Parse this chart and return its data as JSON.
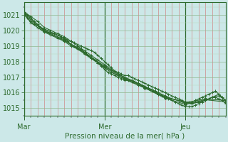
{
  "xlabel": "Pression niveau de la mer( hPa )",
  "bg_color": "#cce8e8",
  "plot_bg_color": "#cce8e8",
  "line_color": "#2d6a2d",
  "ylim": [
    1014.5,
    1021.8
  ],
  "day_labels": [
    "Mar",
    "Mer",
    "Jeu"
  ],
  "day_positions": [
    0,
    48,
    96
  ],
  "total_points": 120,
  "s1_x": [
    0,
    2,
    4,
    6,
    8,
    10,
    12,
    14,
    16,
    18,
    20,
    22,
    24,
    26,
    28,
    30,
    32,
    34,
    36,
    38,
    40,
    42,
    44,
    46,
    48,
    50,
    52,
    54,
    56,
    58,
    60,
    62,
    64,
    66,
    68,
    70,
    72,
    74,
    76,
    78,
    80,
    82,
    84,
    86,
    88,
    90,
    92,
    94,
    96,
    98,
    100,
    102,
    104,
    106,
    108,
    110,
    112,
    114,
    116,
    118,
    120
  ],
  "s1_y": [
    1021.2,
    1021.0,
    1020.8,
    1020.6,
    1020.4,
    1020.2,
    1020.0,
    1019.9,
    1019.8,
    1019.8,
    1019.7,
    1019.6,
    1019.5,
    1019.4,
    1019.3,
    1019.2,
    1019.1,
    1019.0,
    1018.9,
    1018.8,
    1018.7,
    1018.6,
    1018.4,
    1018.2,
    1018.0,
    1017.8,
    1017.6,
    1017.4,
    1017.3,
    1017.2,
    1017.1,
    1017.1,
    1017.0,
    1016.9,
    1016.8,
    1016.7,
    1016.6,
    1016.5,
    1016.4,
    1016.3,
    1016.2,
    1016.1,
    1016.0,
    1015.9,
    1015.8,
    1015.7,
    1015.6,
    1015.5,
    1015.4,
    1015.4,
    1015.4,
    1015.5,
    1015.6,
    1015.7,
    1015.8,
    1015.9,
    1016.0,
    1016.1,
    1015.9,
    1015.7,
    1015.5
  ],
  "s2_x": [
    0,
    2,
    4,
    6,
    8,
    10,
    12,
    14,
    16,
    18,
    20,
    22,
    24,
    26,
    28,
    30,
    32,
    34,
    36,
    38,
    40,
    42,
    44,
    46,
    48,
    50,
    52,
    54,
    56,
    58,
    60,
    62,
    64,
    66,
    68,
    70,
    72,
    74,
    76,
    78,
    80,
    82,
    84,
    86,
    88,
    90,
    92,
    94,
    96,
    98,
    100,
    102,
    104,
    106,
    108,
    110,
    112,
    114,
    116,
    118,
    120
  ],
  "s2_y": [
    1021.0,
    1020.8,
    1020.6,
    1020.4,
    1020.3,
    1020.2,
    1020.1,
    1020.0,
    1019.9,
    1019.8,
    1019.7,
    1019.6,
    1019.5,
    1019.3,
    1019.1,
    1019.0,
    1018.9,
    1018.8,
    1018.6,
    1018.4,
    1018.2,
    1018.1,
    1017.9,
    1017.7,
    1017.5,
    1017.3,
    1017.2,
    1017.1,
    1017.0,
    1016.9,
    1016.8,
    1016.8,
    1016.8,
    1016.7,
    1016.6,
    1016.5,
    1016.4,
    1016.3,
    1016.2,
    1016.1,
    1015.9,
    1015.8,
    1015.7,
    1015.6,
    1015.5,
    1015.4,
    1015.3,
    1015.2,
    1015.1,
    1015.1,
    1015.1,
    1015.2,
    1015.3,
    1015.4,
    1015.5,
    1015.6,
    1015.7,
    1015.7,
    1015.6,
    1015.5,
    1015.3
  ],
  "s3_x": [
    0,
    4,
    8,
    12,
    16,
    20,
    24,
    28,
    32,
    36,
    40,
    44,
    48,
    52,
    56,
    60,
    64,
    68,
    72,
    76,
    80,
    84,
    88,
    92,
    96,
    100,
    104,
    108,
    112,
    116,
    120
  ],
  "s3_y": [
    1021.1,
    1020.5,
    1020.2,
    1019.9,
    1019.7,
    1019.5,
    1019.3,
    1019.0,
    1018.8,
    1018.5,
    1018.2,
    1017.9,
    1017.6,
    1017.3,
    1017.1,
    1016.9,
    1016.7,
    1016.5,
    1016.3,
    1016.1,
    1015.9,
    1015.7,
    1015.6,
    1015.5,
    1015.3,
    1015.3,
    1015.4,
    1015.5,
    1015.7,
    1015.8,
    1015.5
  ],
  "s4_x": [
    0,
    4,
    8,
    12,
    16,
    20,
    24,
    28,
    32,
    36,
    40,
    44,
    48,
    52,
    56,
    60,
    64,
    68,
    72,
    76,
    80,
    84,
    88,
    92,
    96,
    100,
    104,
    108,
    112,
    116,
    120
  ],
  "s4_y": [
    1021.2,
    1020.9,
    1020.6,
    1020.2,
    1020.0,
    1019.8,
    1019.6,
    1019.3,
    1019.0,
    1018.7,
    1018.4,
    1018.1,
    1017.8,
    1017.5,
    1017.2,
    1017.0,
    1016.8,
    1016.6,
    1016.4,
    1016.2,
    1016.0,
    1015.8,
    1015.6,
    1015.5,
    1015.4,
    1015.3,
    1015.4,
    1015.5,
    1015.7,
    1015.9,
    1015.5
  ],
  "s5_x": [
    0,
    12,
    24,
    36,
    48,
    60,
    72,
    84,
    96,
    108,
    120
  ],
  "s5_y": [
    1021.15,
    1020.0,
    1019.4,
    1018.6,
    1017.7,
    1016.95,
    1016.35,
    1015.75,
    1015.35,
    1015.6,
    1015.5
  ],
  "s6_x": [
    0,
    12,
    24,
    36,
    48,
    60,
    72,
    84,
    96,
    108,
    120
  ],
  "s6_y": [
    1021.05,
    1019.95,
    1019.35,
    1018.55,
    1017.65,
    1016.85,
    1016.3,
    1015.65,
    1015.25,
    1015.55,
    1015.4
  ]
}
